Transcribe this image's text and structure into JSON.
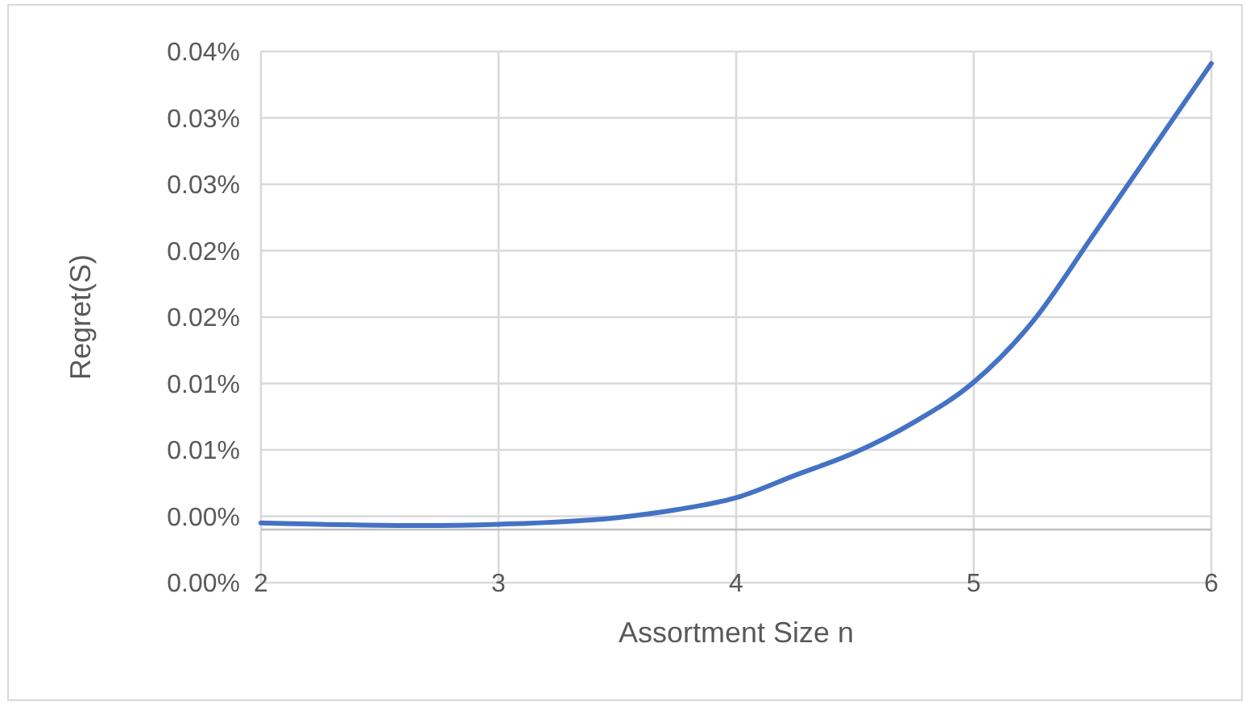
{
  "chart_data": {
    "type": "line",
    "xlabel": "Assortment Size n",
    "ylabel": "Regret(S)",
    "x": [
      2,
      2.67,
      3,
      3.5,
      3.75,
      4,
      4.25,
      4.5,
      4.75,
      5,
      5.25,
      5.5,
      5.75,
      6
    ],
    "series": [
      {
        "color": "#4472c4",
        "values": [
          0.0005,
          0.0003,
          0.0004,
          0.0009,
          0.0015,
          0.0024,
          0.0041,
          0.0058,
          0.0081,
          0.0111,
          0.0157,
          0.0221,
          0.0286,
          0.0351
        ]
      }
    ],
    "xlim": [
      2,
      6
    ],
    "xticks": [
      2,
      3,
      4,
      5,
      6
    ],
    "ylim": [
      -0.004,
      0.036
    ],
    "yticks": [
      {
        "value": -0.004,
        "label": "0.00%"
      },
      {
        "value": 0.001,
        "label": "0.00%"
      },
      {
        "value": 0.006,
        "label": "0.01%"
      },
      {
        "value": 0.011,
        "label": "0.01%"
      },
      {
        "value": 0.016,
        "label": "0.02%"
      },
      {
        "value": 0.021,
        "label": "0.02%"
      },
      {
        "value": 0.026,
        "label": "0.03%"
      },
      {
        "value": 0.031,
        "label": "0.03%"
      },
      {
        "value": 0.036,
        "label": "0.04%"
      }
    ],
    "grid": true,
    "marker": "none",
    "line_style": "solid"
  }
}
